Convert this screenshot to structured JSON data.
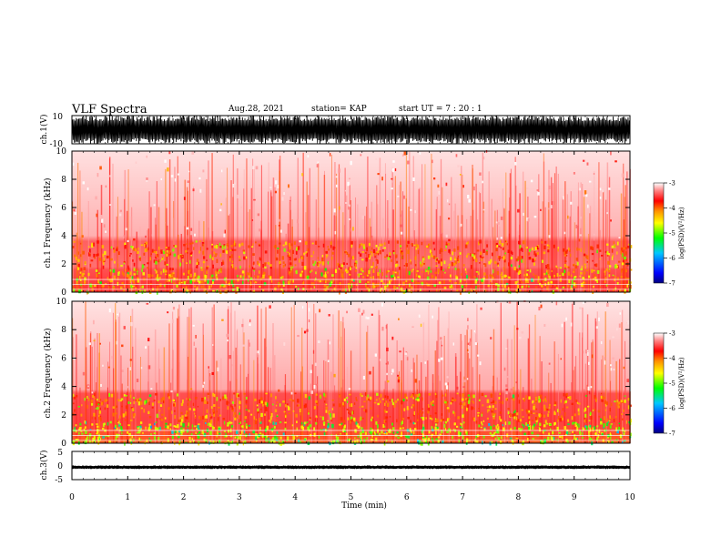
{
  "header": {
    "title": "VLF Spectra",
    "date": "Aug.28, 2021",
    "station": "station= KAP",
    "start": "start  UT =   7 : 20 : 1"
  },
  "chart_data": [
    {
      "type": "line",
      "panel": "ch1-waveform",
      "ylabel": "ch.1(V)",
      "xlim": [
        0,
        10
      ],
      "ylim": [
        -10,
        10
      ],
      "yticks": [
        "10",
        "-10"
      ],
      "description_series": "dense saturated waveform clipping near +/-10 V"
    },
    {
      "type": "heatmap",
      "panel": "ch1-spectrogram",
      "ylabel": "ch.1  Frequency  (kHz)",
      "xlim": [
        0,
        10
      ],
      "ylim": [
        0,
        10
      ],
      "yticks": [
        "0",
        "2",
        "4",
        "6",
        "8",
        "10"
      ],
      "colorbar": {
        "label": "log(PSD)(V²/Hz)",
        "range": [
          -7,
          -3
        ],
        "ticks": [
          "-3",
          "-4",
          "-5",
          "-6",
          "-7"
        ]
      },
      "bands_khz": [
        {
          "from": 0.0,
          "to": 1.6,
          "level": -4.3
        },
        {
          "from": 1.6,
          "to": 3.6,
          "level": -4.0
        },
        {
          "from": 3.6,
          "to": 10.0,
          "level": -3.2
        }
      ]
    },
    {
      "type": "heatmap",
      "panel": "ch2-spectrogram",
      "ylabel": "ch.2  Frequency  (kHz)",
      "xlim": [
        0,
        10
      ],
      "ylim": [
        0,
        10
      ],
      "yticks": [
        "0",
        "2",
        "4",
        "6",
        "8",
        "10"
      ],
      "colorbar": {
        "label": "log(PSD)(V²/Hz)",
        "range": [
          -7,
          -3
        ],
        "ticks": [
          "-3",
          "-4",
          "-5",
          "-6",
          "-7"
        ]
      },
      "bands_khz": [
        {
          "from": 0.0,
          "to": 1.5,
          "level": -4.8
        },
        {
          "from": 1.5,
          "to": 3.5,
          "level": -4.1
        },
        {
          "from": 3.5,
          "to": 10.0,
          "level": -3.2
        }
      ]
    },
    {
      "type": "line",
      "panel": "ch3-waveform",
      "ylabel": "ch.3(V)",
      "xlim": [
        0,
        10
      ],
      "ylim": [
        -5,
        5
      ],
      "yticks": [
        "5",
        "0",
        "-5"
      ],
      "level_v": -0.6
    }
  ],
  "xaxis": {
    "label": "Time  (min)",
    "ticks": [
      "0",
      "1",
      "2",
      "3",
      "4",
      "5",
      "6",
      "7",
      "8",
      "9",
      "10"
    ]
  }
}
